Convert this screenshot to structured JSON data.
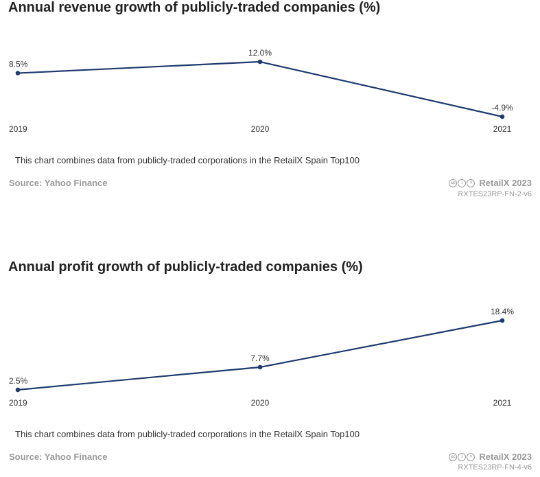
{
  "chart_data": [
    {
      "type": "line",
      "title": "Annual revenue growth of publicly-traded companies (%)",
      "categories": [
        "2019",
        "2020",
        "2021"
      ],
      "series": [
        {
          "values": [
            8.5,
            12.0,
            -4.9
          ]
        }
      ],
      "data_labels": [
        "8.5%",
        "12.0%",
        "-4.9%"
      ],
      "line_color": "#1f3a6e",
      "grid": false,
      "note": "This chart combines data from publicly-traded corporations in the RetailX Spain Top100",
      "source": "Source: Yahoo Finance",
      "brand": "RetailX 2023",
      "code": "RXTES23RP-FN-2-v6"
    },
    {
      "type": "line",
      "title": "Annual profit growth of publicly-traded companies (%)",
      "categories": [
        "2019",
        "2020",
        "2021"
      ],
      "series": [
        {
          "values": [
            2.5,
            7.7,
            18.4
          ]
        }
      ],
      "data_labels": [
        "2.5%",
        "7.7%",
        "18.4%"
      ],
      "line_color": "#1f3a6e",
      "grid": false,
      "note": "This chart combines data from publicly-traded corporations in the RetailX Spain Top100",
      "source": "Source: Yahoo Finance",
      "brand": "RetailX 2023",
      "code": "RXTES23RP-FN-4-v6"
    }
  ],
  "icons": [
    "creative-commons-icon",
    "attribution-icon",
    "no-derivatives-icon"
  ]
}
